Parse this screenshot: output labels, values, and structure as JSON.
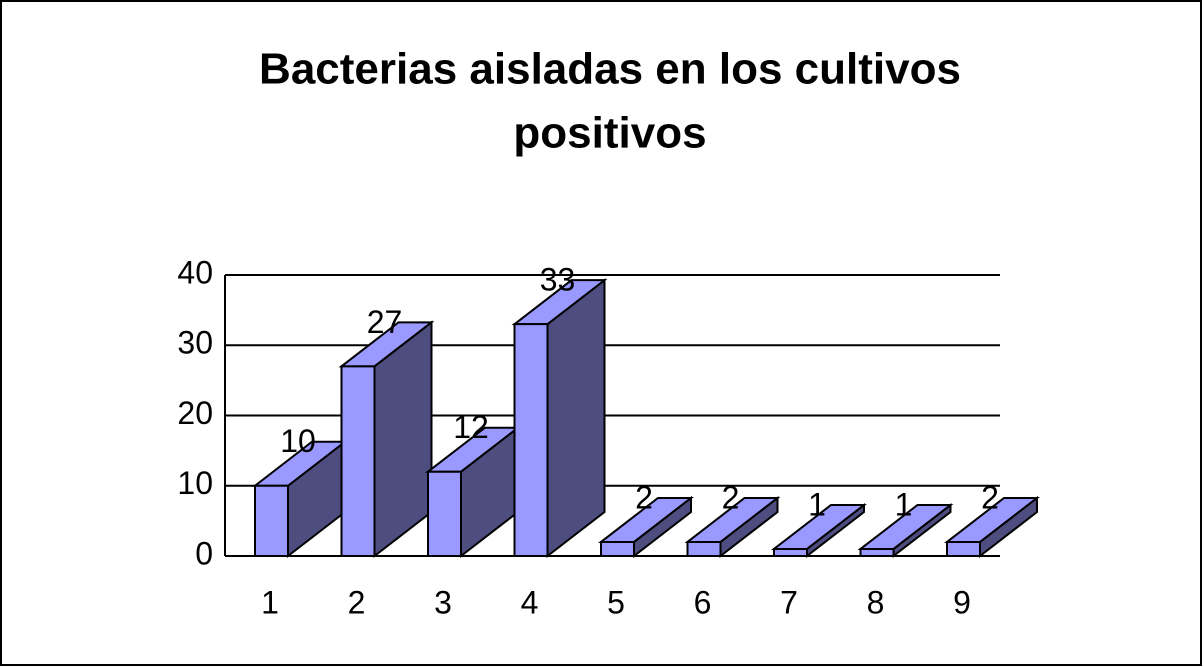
{
  "chart_data": {
    "type": "bar3d",
    "title": [
      "Bacterias aisladas en los cultivos",
      "positivos"
    ],
    "categories": [
      "1",
      "2",
      "3",
      "4",
      "5",
      "6",
      "7",
      "8",
      "9"
    ],
    "values": [
      10,
      27,
      12,
      33,
      2,
      2,
      1,
      1,
      2
    ],
    "color": "#9999ff",
    "side_color": "#4d4d80",
    "ylim": [
      0,
      40
    ],
    "yticks": [
      0,
      10,
      20,
      30,
      40
    ],
    "grid": true
  }
}
